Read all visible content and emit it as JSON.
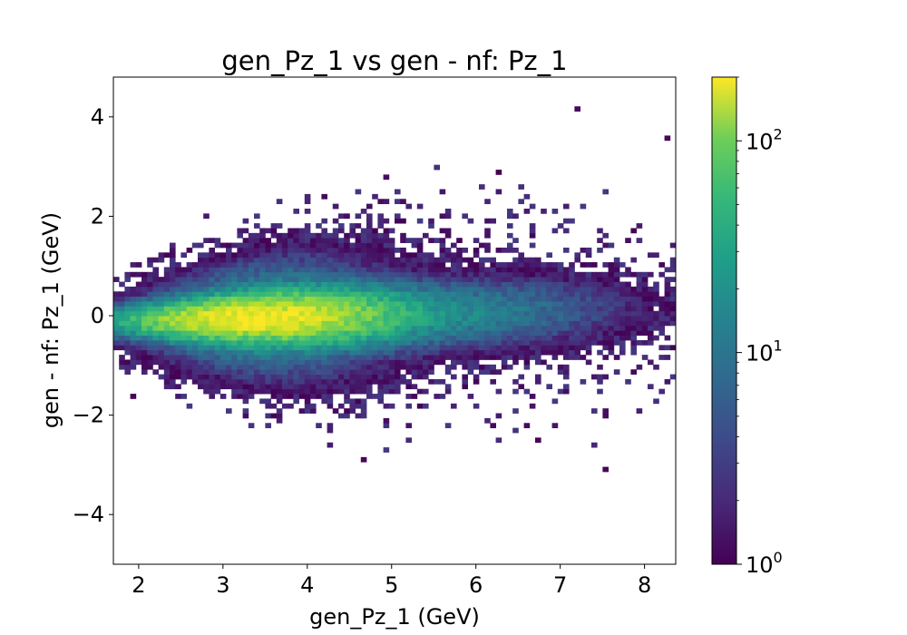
{
  "chart_data": {
    "type": "heatmap",
    "title": "gen_Pz_1 vs gen - nf: Pz_1",
    "xlabel": "gen_Pz_1 (GeV)",
    "ylabel": "gen - nf: Pz_1 (GeV)",
    "xlim": [
      1.7,
      8.37
    ],
    "ylim": [
      -5.0,
      4.8
    ],
    "x_ticks": [
      2,
      3,
      4,
      5,
      6,
      7,
      8
    ],
    "x_tick_labels": [
      "2",
      "3",
      "4",
      "5",
      "6",
      "7",
      "8"
    ],
    "y_ticks": [
      4,
      2,
      0,
      -2,
      -4
    ],
    "y_tick_labels": [
      "4",
      "2",
      "0",
      "−2",
      "−4"
    ],
    "bins": {
      "x_count": 100,
      "y_count": 100
    },
    "colormap": "viridis",
    "color_scale": "log",
    "colorbar": {
      "min": 1,
      "max": 200,
      "ticks": [
        {
          "base": "10",
          "exp": "0",
          "value": 1
        },
        {
          "base": "10",
          "exp": "1",
          "value": 10
        },
        {
          "base": "10",
          "exp": "2",
          "value": 100
        }
      ]
    },
    "density_core": {
      "peak_x": 3.4,
      "peak_y": -0.05,
      "peak_count": 200
    },
    "grid": false
  }
}
